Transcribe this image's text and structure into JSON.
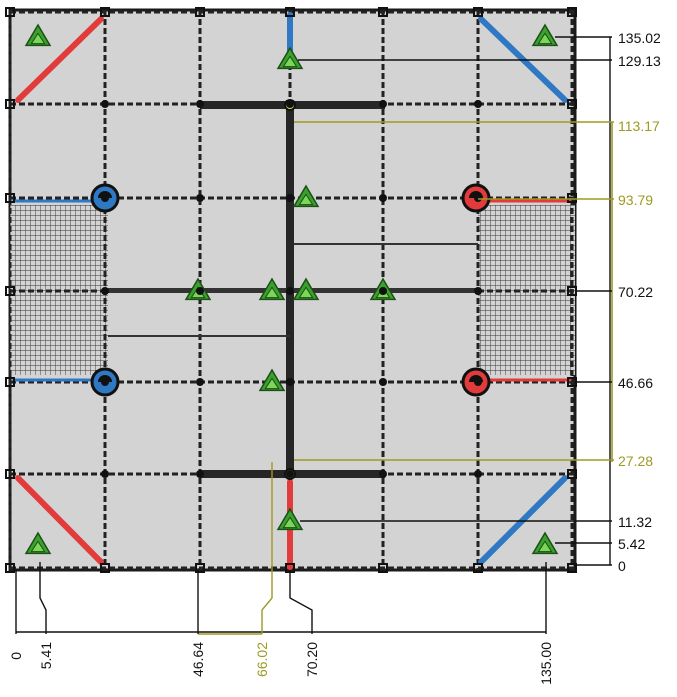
{
  "colors": {
    "panel": "#d3d3d3",
    "frame": "#1a1a1a",
    "red": "#e23b3b",
    "blue": "#2f78c4",
    "green": "#3aa12e",
    "dim_black": "#111111",
    "dim_olive": "#9e9a22"
  },
  "icons": {
    "support": "green-triangle-support-icon",
    "joint": "half-circle-joint-icon"
  },
  "dimensions": {
    "vertical": [
      {
        "label": "135.02",
        "tone": "black"
      },
      {
        "label": "129.13",
        "tone": "black"
      },
      {
        "label": "113.17",
        "tone": "olive"
      },
      {
        "label": "93.79",
        "tone": "olive"
      },
      {
        "label": "70.22",
        "tone": "black"
      },
      {
        "label": "46.66",
        "tone": "black"
      },
      {
        "label": "27.28",
        "tone": "olive"
      },
      {
        "label": "11.32",
        "tone": "black"
      },
      {
        "label": "5.42",
        "tone": "black"
      },
      {
        "label": "0",
        "tone": "black"
      }
    ],
    "horizontal": [
      {
        "label": "0",
        "tone": "black"
      },
      {
        "label": "5.41",
        "tone": "black"
      },
      {
        "label": "46.64",
        "tone": "black"
      },
      {
        "label": "66.02",
        "tone": "olive"
      },
      {
        "label": "70.20",
        "tone": "black"
      },
      {
        "label": "135.00",
        "tone": "black"
      }
    ]
  }
}
